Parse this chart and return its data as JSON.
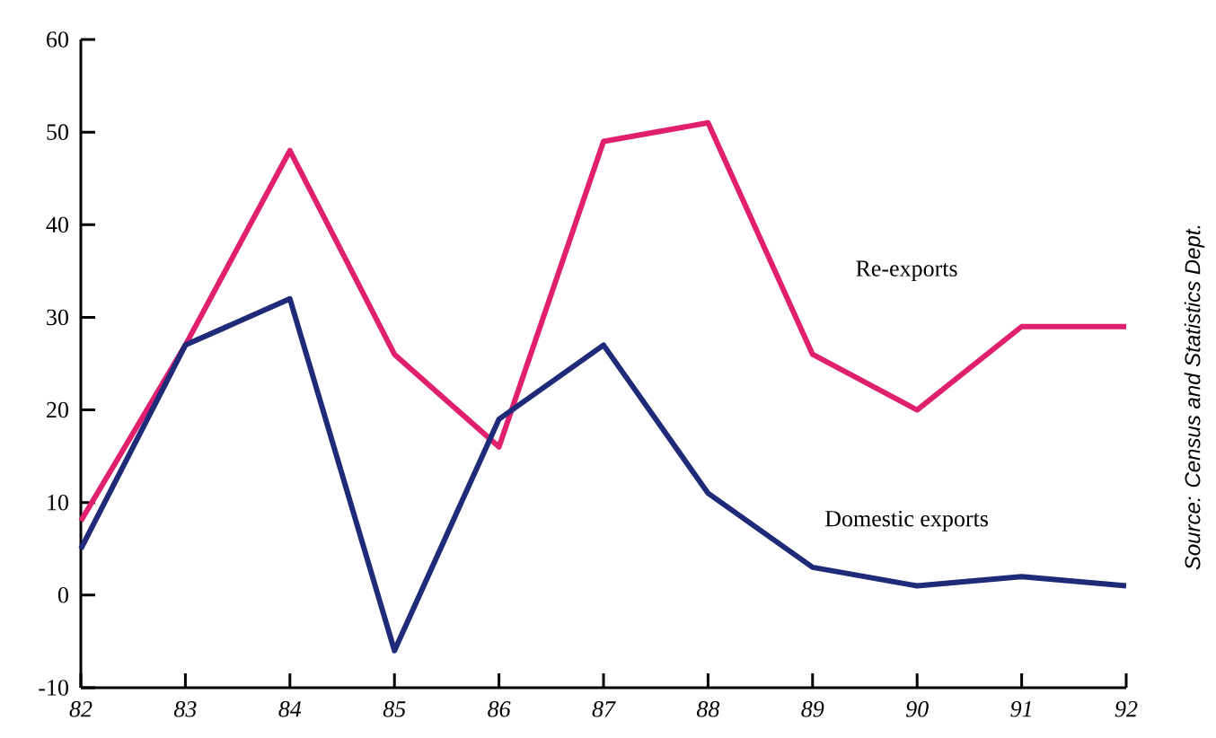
{
  "chart_data": {
    "type": "line",
    "categories": [
      "82",
      "83",
      "84",
      "85",
      "86",
      "87",
      "88",
      "89",
      "90",
      "91",
      "92"
    ],
    "series": [
      {
        "name": "Re-exports",
        "color": "#e0206e",
        "values": [
          8,
          27,
          48,
          26,
          16,
          49,
          51,
          26,
          20,
          29,
          29
        ]
      },
      {
        "name": "Domestic exports",
        "color": "#1f2a78",
        "values": [
          5,
          27,
          32,
          -6,
          19,
          27,
          11,
          3,
          1,
          2,
          1
        ]
      }
    ],
    "ylim": [
      -10,
      60
    ],
    "yticks": [
      -10,
      0,
      10,
      20,
      30,
      40,
      50,
      60
    ],
    "grid": false,
    "legend": false,
    "marker": "none",
    "line_style": "solid",
    "annotations": [
      "Source: Census and Statistics Dept."
    ]
  }
}
